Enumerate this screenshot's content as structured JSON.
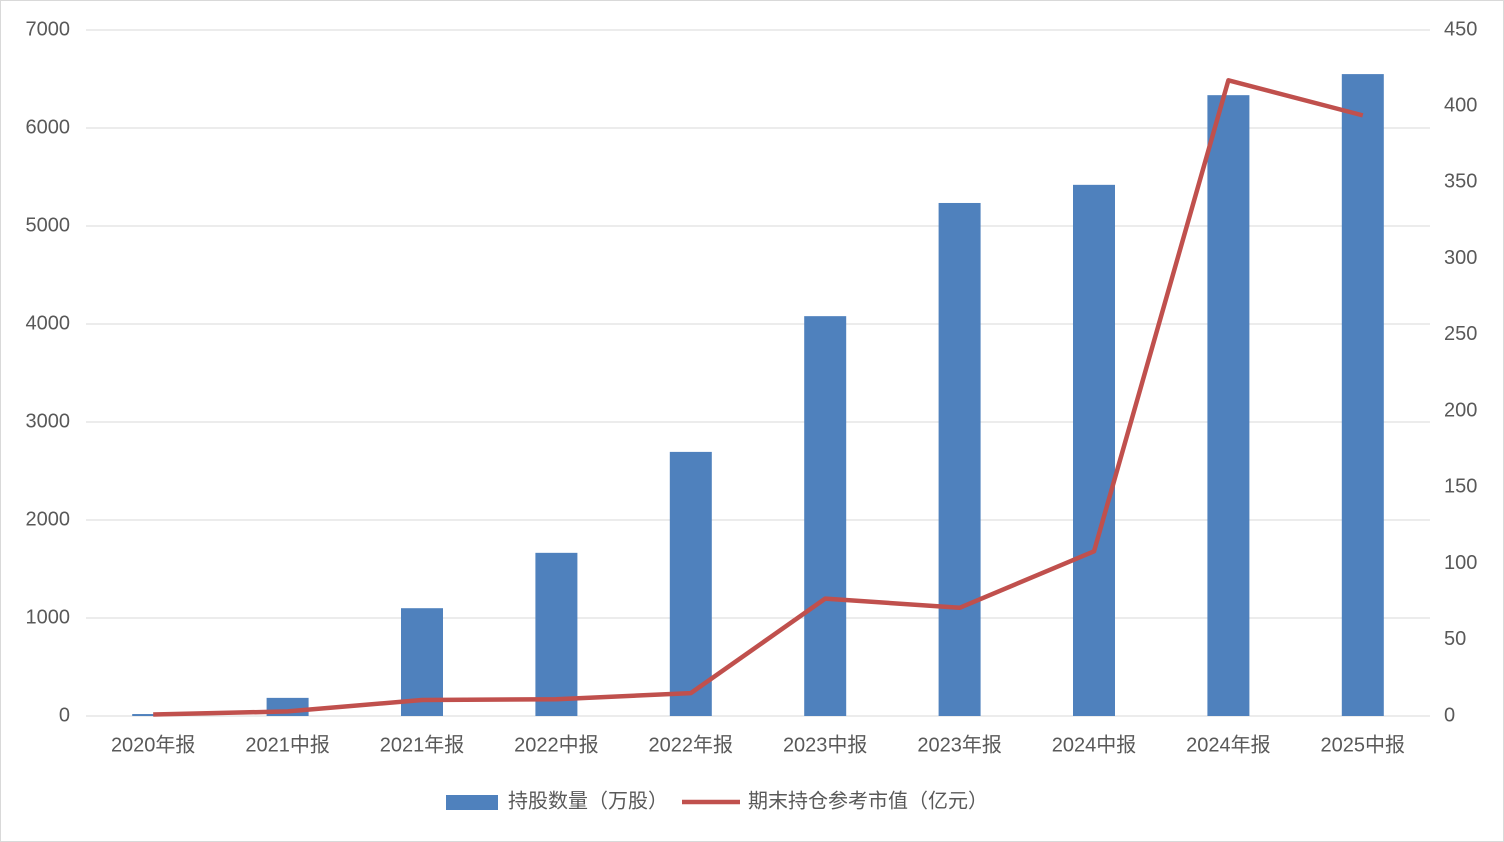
{
  "chart_data": {
    "type": "bar-line",
    "categories": [
      "2020年报",
      "2021中报",
      "2021年报",
      "2022中报",
      "2022年报",
      "2023中报",
      "2023年报",
      "2024中报",
      "2024年报",
      "2025中报"
    ],
    "series": [
      {
        "name": "持股数量（万股）",
        "type": "bar",
        "color": "#4f81bd",
        "values": [
          20,
          185,
          1100,
          1665,
          2695,
          4080,
          5235,
          5420,
          6335,
          6550
        ]
      },
      {
        "name": "期末持仓参考市值（亿元）",
        "type": "line",
        "axis": "y2",
        "color": "#c0504d",
        "values": [
          1,
          3,
          10.5,
          11,
          15,
          77,
          71,
          108,
          417,
          394
        ]
      }
    ],
    "ylim": [
      0,
      7000
    ],
    "yticks": [
      0,
      1000,
      2000,
      3000,
      4000,
      5000,
      6000,
      7000
    ],
    "y2lim": [
      0,
      450
    ],
    "y2ticks": [
      0,
      50,
      100,
      150,
      200,
      250,
      300,
      350,
      400,
      450
    ],
    "grid": true,
    "legend": "bottom"
  }
}
